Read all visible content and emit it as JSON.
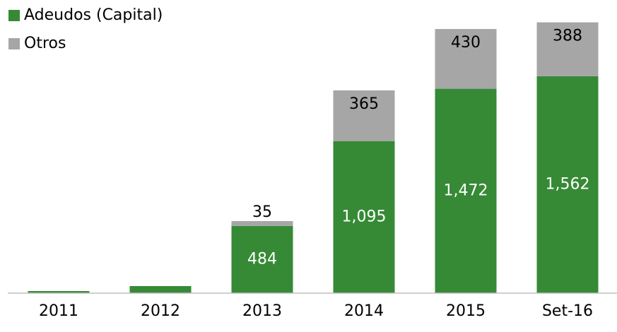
{
  "chart_data": {
    "type": "stacked_bar",
    "categories": [
      "2011",
      "2012",
      "2013",
      "2014",
      "2015",
      "Set-16"
    ],
    "series": [
      {
        "name": "Adeudos (Capital)",
        "color": "#368a36",
        "values": [
          15,
          51,
          484,
          1095,
          1472,
          1562
        ],
        "value_labels": [
          null,
          null,
          "484",
          "1,095",
          "1,472",
          "1,562"
        ]
      },
      {
        "name": "Otros",
        "color": "#a6a6a6",
        "values": [
          0,
          0,
          35,
          365,
          430,
          388
        ],
        "value_labels": [
          null,
          null,
          "35",
          "365",
          "430",
          "388"
        ]
      }
    ],
    "ylim": [
      0,
      2000
    ],
    "legend": "top-left"
  }
}
